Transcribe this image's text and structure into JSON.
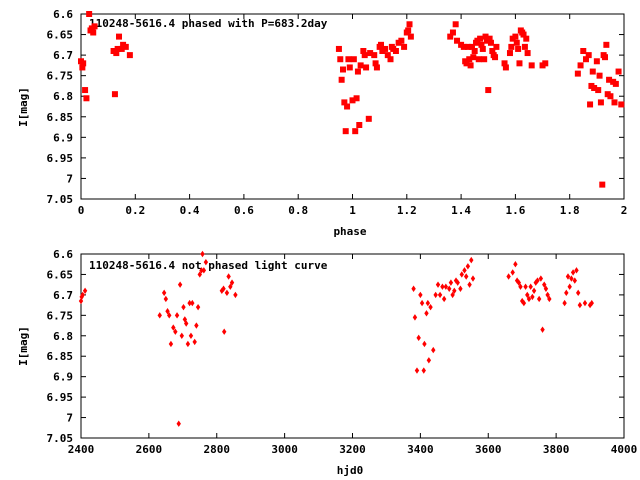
{
  "chart_data": [
    {
      "type": "scatter",
      "title": "110248-5616.4 phased with P=683.2day",
      "xlabel": "phase",
      "ylabel": "I[mag]",
      "xlim": [
        0,
        2
      ],
      "ylim": [
        6.6,
        7.05
      ],
      "y_inverted": true,
      "grid": false,
      "legend": "none",
      "xticks": [
        "0",
        "0.2",
        "0.4",
        "0.6",
        "0.8",
        "1",
        "1.2",
        "1.4",
        "1.6",
        "1.8",
        "2"
      ],
      "yticks": [
        "6.6",
        "6.65",
        "6.7",
        "6.75",
        "6.8",
        "6.85",
        "6.9",
        "6.95",
        "7",
        "7.05"
      ],
      "marker_color": "#ff0000",
      "series": [
        {
          "points": [
            [
              0.0,
              6.715
            ],
            [
              0.005,
              6.73
            ],
            [
              0.008,
              6.72
            ],
            [
              0.015,
              6.785
            ],
            [
              0.02,
              6.805
            ],
            [
              0.03,
              6.6
            ],
            [
              0.035,
              6.64
            ],
            [
              0.04,
              6.635
            ],
            [
              0.045,
              6.645
            ],
            [
              0.05,
              6.63
            ],
            [
              0.12,
              6.69
            ],
            [
              0.125,
              6.795
            ],
            [
              0.13,
              6.695
            ],
            [
              0.135,
              6.685
            ],
            [
              0.14,
              6.655
            ],
            [
              0.15,
              6.685
            ],
            [
              0.155,
              6.675
            ],
            [
              0.165,
              6.68
            ],
            [
              0.18,
              6.7
            ],
            [
              0.95,
              6.685
            ],
            [
              0.955,
              6.71
            ],
            [
              0.96,
              6.76
            ],
            [
              0.965,
              6.735
            ],
            [
              0.97,
              6.815
            ],
            [
              0.975,
              6.885
            ],
            [
              0.98,
              6.825
            ],
            [
              0.985,
              6.71
            ],
            [
              0.99,
              6.73
            ],
            [
              1.0,
              6.81
            ],
            [
              1.005,
              6.71
            ],
            [
              1.01,
              6.885
            ],
            [
              1.015,
              6.805
            ],
            [
              1.02,
              6.74
            ],
            [
              1.025,
              6.87
            ],
            [
              1.03,
              6.725
            ],
            [
              1.04,
              6.69
            ],
            [
              1.045,
              6.7
            ],
            [
              1.05,
              6.73
            ],
            [
              1.06,
              6.855
            ],
            [
              1.065,
              6.695
            ],
            [
              1.08,
              6.7
            ],
            [
              1.085,
              6.72
            ],
            [
              1.09,
              6.73
            ],
            [
              1.1,
              6.68
            ],
            [
              1.105,
              6.675
            ],
            [
              1.11,
              6.69
            ],
            [
              1.12,
              6.685
            ],
            [
              1.13,
              6.7
            ],
            [
              1.14,
              6.71
            ],
            [
              1.145,
              6.68
            ],
            [
              1.15,
              6.685
            ],
            [
              1.16,
              6.69
            ],
            [
              1.17,
              6.67
            ],
            [
              1.18,
              6.665
            ],
            [
              1.19,
              6.68
            ],
            [
              1.2,
              6.645
            ],
            [
              1.205,
              6.64
            ],
            [
              1.21,
              6.625
            ],
            [
              1.215,
              6.655
            ],
            [
              1.36,
              6.655
            ],
            [
              1.37,
              6.645
            ],
            [
              1.38,
              6.625
            ],
            [
              1.385,
              6.665
            ],
            [
              1.4,
              6.675
            ],
            [
              1.41,
              6.68
            ],
            [
              1.415,
              6.715
            ],
            [
              1.42,
              6.72
            ],
            [
              1.425,
              6.68
            ],
            [
              1.43,
              6.71
            ],
            [
              1.435,
              6.725
            ],
            [
              1.44,
              6.68
            ],
            [
              1.445,
              6.705
            ],
            [
              1.45,
              6.69
            ],
            [
              1.455,
              6.67
            ],
            [
              1.46,
              6.665
            ],
            [
              1.465,
              6.71
            ],
            [
              1.47,
              6.66
            ],
            [
              1.475,
              6.675
            ],
            [
              1.48,
              6.685
            ],
            [
              1.485,
              6.71
            ],
            [
              1.49,
              6.655
            ],
            [
              1.495,
              6.665
            ],
            [
              1.5,
              6.785
            ],
            [
              1.505,
              6.66
            ],
            [
              1.51,
              6.67
            ],
            [
              1.515,
              6.69
            ],
            [
              1.52,
              6.7
            ],
            [
              1.525,
              6.705
            ],
            [
              1.53,
              6.68
            ],
            [
              1.56,
              6.72
            ],
            [
              1.565,
              6.73
            ],
            [
              1.58,
              6.695
            ],
            [
              1.585,
              6.68
            ],
            [
              1.59,
              6.66
            ],
            [
              1.6,
              6.655
            ],
            [
              1.605,
              6.67
            ],
            [
              1.61,
              6.685
            ],
            [
              1.615,
              6.72
            ],
            [
              1.62,
              6.64
            ],
            [
              1.625,
              6.645
            ],
            [
              1.63,
              6.65
            ],
            [
              1.635,
              6.68
            ],
            [
              1.64,
              6.66
            ],
            [
              1.645,
              6.695
            ],
            [
              1.66,
              6.725
            ],
            [
              1.7,
              6.725
            ],
            [
              1.71,
              6.72
            ],
            [
              1.83,
              6.745
            ],
            [
              1.84,
              6.725
            ],
            [
              1.85,
              6.69
            ],
            [
              1.86,
              6.71
            ],
            [
              1.87,
              6.7
            ],
            [
              1.875,
              6.82
            ],
            [
              1.88,
              6.775
            ],
            [
              1.885,
              6.74
            ],
            [
              1.89,
              6.78
            ],
            [
              1.9,
              6.715
            ],
            [
              1.905,
              6.785
            ],
            [
              1.91,
              6.75
            ],
            [
              1.915,
              6.815
            ],
            [
              1.92,
              7.015
            ],
            [
              1.925,
              6.7
            ],
            [
              1.93,
              6.705
            ],
            [
              1.935,
              6.675
            ],
            [
              1.94,
              6.795
            ],
            [
              1.945,
              6.76
            ],
            [
              1.95,
              6.8
            ],
            [
              1.96,
              6.765
            ],
            [
              1.965,
              6.815
            ],
            [
              1.97,
              6.77
            ],
            [
              1.98,
              6.74
            ],
            [
              1.99,
              6.82
            ]
          ]
        }
      ]
    },
    {
      "type": "scatter",
      "title": "110248-5616.4 not phased light curve",
      "xlabel": "hjd0",
      "ylabel": "I[mag]",
      "xlim": [
        2400,
        4000
      ],
      "ylim": [
        6.6,
        7.05
      ],
      "y_inverted": true,
      "grid": false,
      "legend": "none",
      "xticks": [
        "2400",
        "2600",
        "2800",
        "3000",
        "3200",
        "3400",
        "3600",
        "3800",
        "4000"
      ],
      "yticks": [
        "6.6",
        "6.65",
        "6.7",
        "6.75",
        "6.8",
        "6.85",
        "6.9",
        "6.95",
        "7",
        "7.05"
      ],
      "marker_color": "#ff0000",
      "series": [
        {
          "points": [
            [
              2400,
              6.715
            ],
            [
              2402,
              6.705
            ],
            [
              2405,
              6.7
            ],
            [
              2412,
              6.69
            ],
            [
              2632,
              6.75
            ],
            [
              2645,
              6.695
            ],
            [
              2650,
              6.71
            ],
            [
              2655,
              6.74
            ],
            [
              2660,
              6.75
            ],
            [
              2665,
              6.82
            ],
            [
              2672,
              6.78
            ],
            [
              2678,
              6.79
            ],
            [
              2683,
              6.75
            ],
            [
              2688,
              7.015
            ],
            [
              2692,
              6.675
            ],
            [
              2697,
              6.8
            ],
            [
              2702,
              6.73
            ],
            [
              2706,
              6.76
            ],
            [
              2710,
              6.77
            ],
            [
              2715,
              6.82
            ],
            [
              2720,
              6.72
            ],
            [
              2724,
              6.8
            ],
            [
              2728,
              6.72
            ],
            [
              2735,
              6.815
            ],
            [
              2740,
              6.775
            ],
            [
              2745,
              6.73
            ],
            [
              2750,
              6.65
            ],
            [
              2755,
              6.64
            ],
            [
              2758,
              6.6
            ],
            [
              2762,
              6.64
            ],
            [
              2768,
              6.62
            ],
            [
              2815,
              6.69
            ],
            [
              2820,
              6.685
            ],
            [
              2822,
              6.79
            ],
            [
              2830,
              6.695
            ],
            [
              2835,
              6.655
            ],
            [
              2840,
              6.68
            ],
            [
              2845,
              6.67
            ],
            [
              2855,
              6.7
            ],
            [
              3380,
              6.685
            ],
            [
              3384,
              6.755
            ],
            [
              3390,
              6.885
            ],
            [
              3395,
              6.805
            ],
            [
              3400,
              6.7
            ],
            [
              3405,
              6.72
            ],
            [
              3410,
              6.885
            ],
            [
              3412,
              6.82
            ],
            [
              3418,
              6.745
            ],
            [
              3422,
              6.72
            ],
            [
              3425,
              6.86
            ],
            [
              3430,
              6.73
            ],
            [
              3438,
              6.835
            ],
            [
              3445,
              6.7
            ],
            [
              3452,
              6.675
            ],
            [
              3458,
              6.7
            ],
            [
              3465,
              6.68
            ],
            [
              3470,
              6.71
            ],
            [
              3475,
              6.68
            ],
            [
              3485,
              6.685
            ],
            [
              3490,
              6.67
            ],
            [
              3495,
              6.7
            ],
            [
              3500,
              6.69
            ],
            [
              3505,
              6.665
            ],
            [
              3510,
              6.67
            ],
            [
              3518,
              6.685
            ],
            [
              3522,
              6.65
            ],
            [
              3530,
              6.64
            ],
            [
              3535,
              6.655
            ],
            [
              3540,
              6.63
            ],
            [
              3545,
              6.675
            ],
            [
              3550,
              6.615
            ],
            [
              3555,
              6.66
            ],
            [
              3660,
              6.655
            ],
            [
              3672,
              6.645
            ],
            [
              3680,
              6.625
            ],
            [
              3685,
              6.665
            ],
            [
              3690,
              6.67
            ],
            [
              3695,
              6.68
            ],
            [
              3700,
              6.715
            ],
            [
              3705,
              6.72
            ],
            [
              3710,
              6.68
            ],
            [
              3715,
              6.7
            ],
            [
              3720,
              6.71
            ],
            [
              3725,
              6.68
            ],
            [
              3730,
              6.705
            ],
            [
              3735,
              6.69
            ],
            [
              3740,
              6.67
            ],
            [
              3745,
              6.665
            ],
            [
              3750,
              6.71
            ],
            [
              3755,
              6.66
            ],
            [
              3760,
              6.785
            ],
            [
              3765,
              6.675
            ],
            [
              3770,
              6.685
            ],
            [
              3775,
              6.7
            ],
            [
              3780,
              6.71
            ],
            [
              3825,
              6.72
            ],
            [
              3830,
              6.695
            ],
            [
              3835,
              6.655
            ],
            [
              3840,
              6.68
            ],
            [
              3845,
              6.66
            ],
            [
              3850,
              6.645
            ],
            [
              3855,
              6.665
            ],
            [
              3860,
              6.64
            ],
            [
              3865,
              6.695
            ],
            [
              3870,
              6.725
            ],
            [
              3885,
              6.72
            ],
            [
              3900,
              6.725
            ],
            [
              3905,
              6.72
            ]
          ]
        }
      ]
    }
  ]
}
